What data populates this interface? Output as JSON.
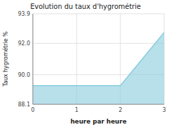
{
  "chart_data": {
    "type": "area",
    "title": "Evolution du taux d'hygrométrie",
    "x_label": "heure par heure",
    "y_label": "Taux hygrométrie %",
    "x": [
      0,
      1,
      2,
      3
    ],
    "values": [
      89.3,
      89.3,
      89.3,
      92.7
    ],
    "color": "#88ccdd",
    "xlim": [
      0,
      3
    ],
    "ylim": [
      88.1,
      93.9
    ],
    "xticks": [
      0,
      1,
      2,
      3
    ],
    "yticks": [
      88.1,
      {
        "value": 90.0,
        "label": "90.0"
      },
      {
        "value": 92.0,
        "label": "92.0"
      },
      93.9
    ],
    "grid": true
  }
}
